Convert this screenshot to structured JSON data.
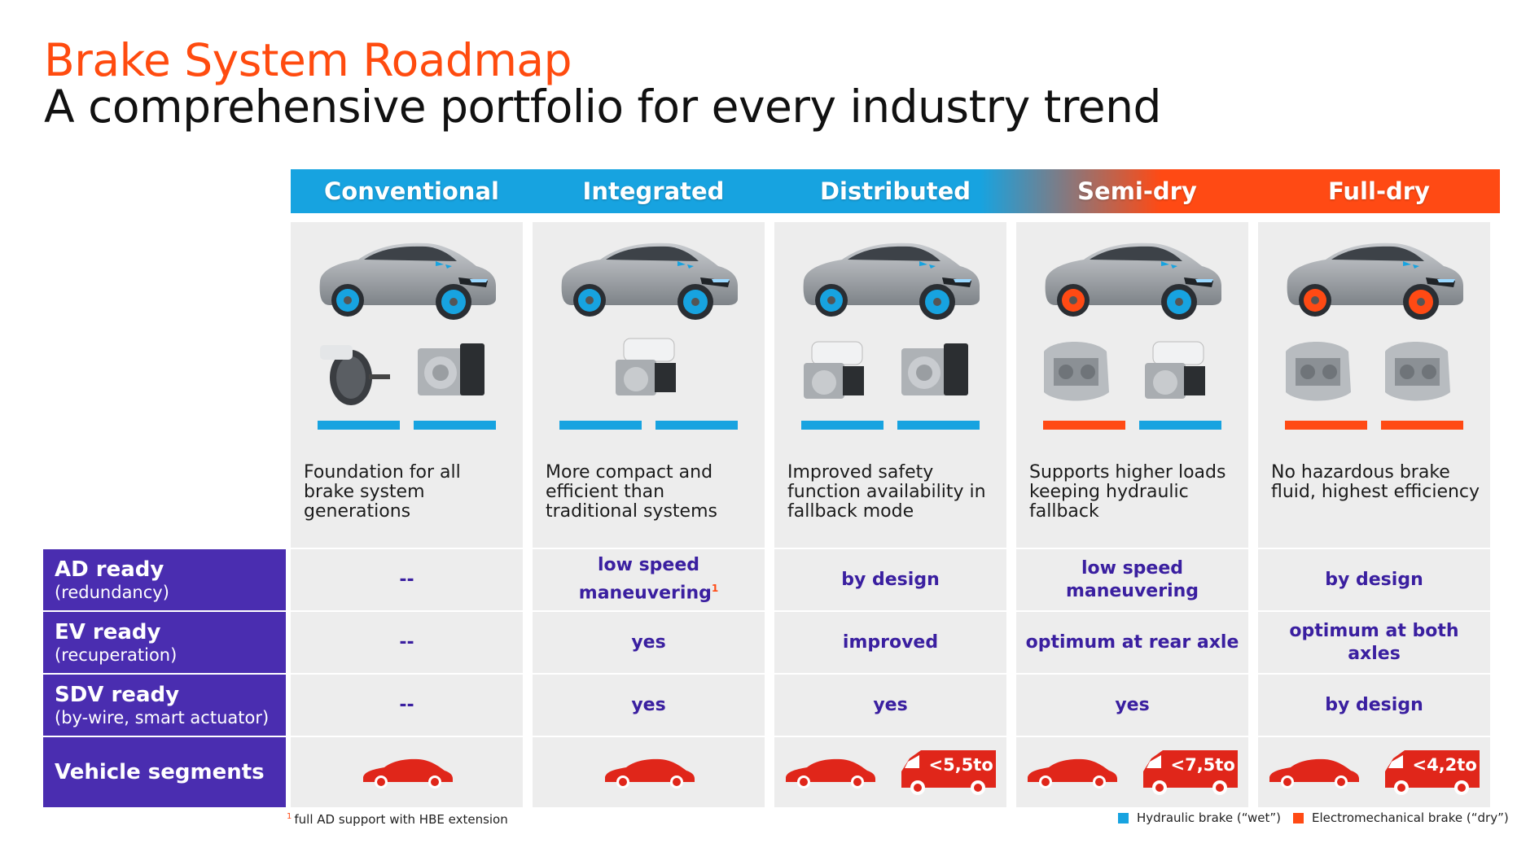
{
  "title": "Brake System Roadmap",
  "subtitle": "A comprehensive portfolio for every industry trend",
  "colors": {
    "hydraulic": "#17a3e0",
    "electromech": "#ff4a14",
    "purple": "#4a2db0",
    "label_text": "#3a1fa0",
    "van_red": "#e0261a"
  },
  "columns": [
    {
      "name": "Conventional",
      "description": "Foundation for all brake system generations",
      "bar_types": [
        "hydraulic",
        "hydraulic"
      ],
      "wheel_front": "hydraulic",
      "wheel_rear": "hydraulic"
    },
    {
      "name": "Integrated",
      "description": "More compact and efficient than traditional systems",
      "bar_types": [
        "hydraulic",
        "hydraulic"
      ],
      "wheel_front": "hydraulic",
      "wheel_rear": "hydraulic"
    },
    {
      "name": "Distributed",
      "description": "Improved safety function availability in fallback mode",
      "bar_types": [
        "hydraulic",
        "hydraulic"
      ],
      "wheel_front": "hydraulic",
      "wheel_rear": "hydraulic"
    },
    {
      "name": "Semi-dry",
      "description": "Supports higher loads keeping hydraulic fallback",
      "bar_types": [
        "electromech",
        "hydraulic"
      ],
      "wheel_front": "hydraulic",
      "wheel_rear": "electromech"
    },
    {
      "name": "Full-dry",
      "description": "No hazardous brake fluid, highest efficiency",
      "bar_types": [
        "electromech",
        "electromech"
      ],
      "wheel_front": "electromech",
      "wheel_rear": "electromech"
    }
  ],
  "rows": [
    {
      "title": "AD ready",
      "sub": "(redundancy)",
      "values": [
        "--",
        "low speed maneuvering",
        "by design",
        "low speed maneuvering",
        "by design"
      ],
      "footnote_marks": [
        "",
        "1",
        "",
        "",
        ""
      ]
    },
    {
      "title": "EV ready",
      "sub": "(recuperation)",
      "values": [
        "--",
        "yes",
        "improved",
        "optimum at rear axle",
        "optimum at both axles"
      ],
      "footnote_marks": [
        "",
        "",
        "",
        "",
        ""
      ]
    },
    {
      "title": "SDV ready",
      "sub": "(by-wire, smart actuator)",
      "values": [
        "--",
        "yes",
        "yes",
        "yes",
        "by design"
      ],
      "footnote_marks": [
        "",
        "",
        "",
        "",
        ""
      ]
    },
    {
      "title": "Vehicle segments",
      "sub": "",
      "values": [
        "",
        "",
        "",
        "",
        ""
      ],
      "footnote_marks": [
        "",
        "",
        "",
        "",
        ""
      ]
    }
  ],
  "segments": [
    {
      "car": true,
      "van_label": ""
    },
    {
      "car": true,
      "van_label": ""
    },
    {
      "car": true,
      "van_label": "<5,5to"
    },
    {
      "car": true,
      "van_label": "<7,5to"
    },
    {
      "car": true,
      "van_label": "<4,2to"
    }
  ],
  "footnote": {
    "mark": "1",
    "text": "full AD support with HBE extension"
  },
  "legend": [
    {
      "label": "Hydraulic brake (“wet”)",
      "color": "#17a3e0"
    },
    {
      "label": "Electromechanical brake (“dry”)",
      "color": "#ff4a14"
    }
  ]
}
